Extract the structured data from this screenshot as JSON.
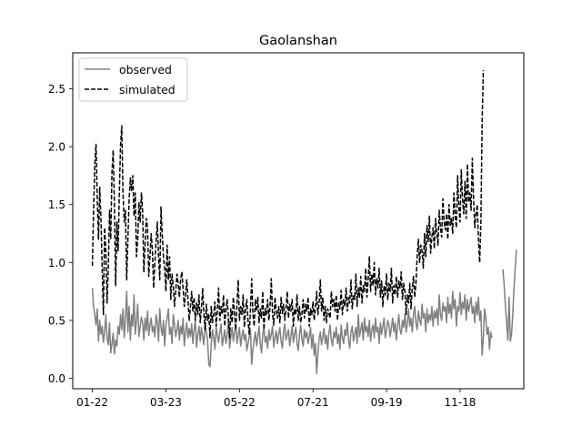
{
  "chart_data": {
    "type": "line",
    "title": "Gaolanshan",
    "xlabel": "",
    "ylabel": "",
    "x_unit": "day",
    "xlim_days": [
      -16,
      352
    ],
    "ylim": [
      -0.09,
      2.81
    ],
    "x_ticks": [
      {
        "label": "01-22",
        "day": 0
      },
      {
        "label": "03-23",
        "day": 60
      },
      {
        "label": "05-22",
        "day": 120
      },
      {
        "label": "07-21",
        "day": 180
      },
      {
        "label": "09-19",
        "day": 240
      },
      {
        "label": "11-18",
        "day": 300
      }
    ],
    "y_ticks": [
      0.0,
      0.5,
      1.0,
      1.5,
      2.0,
      2.5
    ],
    "y_tick_labels": [
      "0.0",
      "0.5",
      "1.0",
      "1.5",
      "2.0",
      "2.5"
    ],
    "legend": {
      "position": "upper-left",
      "observed_label": "observed",
      "simulated_label": "simulated"
    },
    "series": [
      {
        "name": "observed",
        "color": "#808080",
        "style": "solid",
        "segments": [
          {
            "start_day": 0,
            "values": [
              0.78,
              0.62,
              0.55,
              0.46,
              0.6,
              0.32,
              0.5,
              0.38,
              0.45,
              0.31,
              0.4,
              0.55,
              0.35,
              0.29,
              0.48,
              0.22,
              0.3,
              0.39,
              0.21,
              0.33,
              0.28,
              0.45,
              0.38,
              0.55,
              0.42,
              0.6,
              0.35,
              0.52,
              0.75,
              0.4,
              0.62,
              0.33,
              0.55,
              0.45,
              0.72,
              0.38,
              0.5,
              0.64,
              0.36,
              0.45,
              0.53,
              0.48,
              0.33,
              0.52,
              0.41,
              0.58,
              0.37,
              0.46,
              0.52,
              0.4,
              0.45,
              0.36,
              0.55,
              0.48,
              0.32,
              0.6,
              0.44,
              0.37,
              0.5,
              0.28,
              0.46,
              0.52,
              0.6,
              0.38,
              0.44,
              0.3,
              0.55,
              0.47,
              0.36,
              0.42,
              0.5,
              0.33,
              0.45,
              0.38,
              0.52,
              0.28,
              0.4,
              0.48,
              0.35,
              0.43,
              0.36,
              0.47,
              0.3,
              0.42,
              0.5,
              0.27,
              0.38,
              0.45,
              0.32,
              0.44,
              0.36,
              0.29,
              0.48,
              0.4,
              0.33,
              0.12,
              0.1,
              0.3,
              0.42,
              0.35,
              0.25,
              0.45,
              0.37,
              0.31,
              0.4,
              0.47,
              0.28,
              0.35,
              0.42,
              0.3,
              0.38,
              0.5,
              0.26,
              0.36,
              0.44,
              0.32,
              0.4,
              0.47,
              0.3,
              0.38,
              0.44,
              0.28,
              0.36,
              0.42,
              0.33,
              0.38,
              0.24,
              0.3,
              0.36,
              0.42,
              0.12,
              0.25,
              0.33,
              0.4,
              0.28,
              0.36,
              0.45,
              0.3,
              0.22,
              0.38,
              0.44,
              0.31,
              0.36,
              0.26,
              0.42,
              0.33,
              0.38,
              0.45,
              0.27,
              0.35,
              0.41,
              0.3,
              0.38,
              0.44,
              0.32,
              0.26,
              0.4,
              0.47,
              0.33,
              0.38,
              0.42,
              0.28,
              0.36,
              0.45,
              0.31,
              0.38,
              0.44,
              0.3,
              0.24,
              0.38,
              0.46,
              0.33,
              0.28,
              0.42,
              0.35,
              0.4,
              0.3,
              0.36,
              0.44,
              0.26,
              0.38,
              0.2,
              0.3,
              0.04,
              0.22,
              0.34,
              0.4,
              0.29,
              0.36,
              0.43,
              0.3,
              0.37,
              0.25,
              0.39,
              0.46,
              0.33,
              0.28,
              0.4,
              0.35,
              0.44,
              0.3,
              0.38,
              0.25,
              0.46,
              0.35,
              0.3,
              0.42,
              0.37,
              0.48,
              0.33,
              0.26,
              0.4,
              0.45,
              0.32,
              0.38,
              0.44,
              0.3,
              0.55,
              0.36,
              0.42,
              0.48,
              0.33,
              0.52,
              0.4,
              0.45,
              0.36,
              0.5,
              0.32,
              0.42,
              0.46,
              0.35,
              0.52,
              0.4,
              0.44,
              0.3,
              0.48,
              0.38,
              0.45,
              0.52,
              0.35,
              0.42,
              0.5,
              0.46,
              0.36,
              0.44,
              0.52,
              0.4,
              0.48,
              0.33,
              0.45,
              0.55,
              0.42,
              0.38,
              0.5,
              0.44,
              0.56,
              0.4,
              0.48,
              0.6,
              0.45,
              0.52,
              0.4,
              0.55,
              0.62,
              0.48,
              0.42,
              0.58,
              0.5,
              0.46,
              0.64,
              0.52,
              0.56,
              0.4,
              0.6,
              0.48,
              0.55,
              0.5,
              0.62,
              0.45,
              0.58,
              0.52,
              0.6,
              0.46,
              0.72,
              0.55,
              0.5,
              0.65,
              0.58,
              0.62,
              0.48,
              0.7,
              0.56,
              0.64,
              0.52,
              0.75,
              0.6,
              0.68,
              0.45,
              0.62,
              0.58,
              0.74,
              0.55,
              0.66,
              0.6,
              0.72,
              0.5,
              0.68,
              0.58,
              0.64,
              0.7,
              0.56,
              0.62,
              0.48,
              0.66,
              0.55,
              0.7,
              0.5,
              0.58,
              0.2,
              0.35,
              0.6,
              0.52,
              0.38,
              0.44,
              0.25,
              0.4,
              0.35
            ]
          },
          {
            "start_day": 335,
            "values": [
              0.94,
              0.8,
              0.62,
              0.48,
              0.33,
              0.7,
              0.32,
              0.38,
              0.55,
              0.78,
              0.95,
              1.11
            ]
          }
        ]
      },
      {
        "name": "simulated",
        "color": "#000000",
        "style": "dashed",
        "segments": [
          {
            "start_day": 0,
            "values": [
              0.97,
              1.45,
              1.85,
              2.02,
              1.55,
              1.2,
              1.65,
              1.38,
              0.95,
              0.55,
              1.3,
              1.1,
              0.65,
              0.95,
              1.45,
              1.2,
              1.78,
              1.97,
              1.5,
              0.8,
              1.35,
              1.1,
              1.6,
              2.02,
              2.18,
              1.6,
              1.35,
              1.45,
              0.85,
              1.2,
              1.55,
              1.73,
              1.62,
              1.75,
              1.4,
              1.6,
              1.05,
              1.2,
              1.52,
              1.35,
              1.6,
              1.45,
              0.92,
              1.15,
              1.38,
              1.3,
              0.88,
              1.05,
              1.25,
              1.1,
              0.78,
              1.0,
              1.18,
              1.35,
              1.05,
              0.85,
              1.48,
              1.25,
              1.05,
              0.95,
              0.75,
              1.15,
              0.85,
              1.05,
              0.68,
              0.9,
              0.8,
              0.62,
              0.75,
              0.9,
              0.82,
              0.7,
              0.85,
              0.92,
              0.78,
              0.62,
              0.72,
              0.85,
              0.68,
              0.5,
              0.62,
              0.75,
              0.58,
              0.7,
              0.5,
              0.65,
              0.55,
              0.72,
              0.48,
              0.6,
              0.78,
              0.55,
              0.42,
              0.64,
              0.5,
              0.55,
              0.35,
              0.62,
              0.48,
              0.56,
              0.66,
              0.45,
              0.58,
              0.78,
              0.5,
              0.62,
              0.55,
              0.72,
              0.45,
              0.6,
              0.68,
              0.52,
              0.35,
              0.6,
              0.48,
              0.7,
              0.56,
              0.42,
              0.64,
              0.85,
              0.5,
              0.62,
              0.55,
              0.72,
              0.44,
              0.6,
              0.68,
              0.5,
              0.38,
              0.6,
              0.86,
              0.55,
              0.45,
              0.68,
              0.58,
              0.7,
              0.48,
              0.6,
              0.52,
              0.75,
              0.42,
              0.6,
              0.55,
              0.68,
              0.5,
              0.62,
              0.86,
              0.55,
              0.46,
              0.7,
              0.58,
              0.52,
              0.62,
              0.48,
              0.7,
              0.56,
              0.64,
              0.5,
              0.6,
              0.75,
              0.52,
              0.64,
              0.58,
              0.68,
              0.45,
              0.6,
              0.55,
              0.72,
              0.5,
              0.62,
              0.48,
              0.56,
              0.68,
              0.52,
              0.64,
              0.58,
              0.7,
              0.45,
              0.6,
              0.55,
              0.66,
              0.5,
              0.62,
              0.75,
              0.55,
              0.64,
              0.85,
              0.58,
              0.7,
              0.5,
              0.62,
              0.48,
              0.6,
              0.56,
              0.52,
              0.75,
              0.62,
              0.68,
              0.58,
              0.72,
              0.5,
              0.65,
              0.6,
              0.76,
              0.55,
              0.68,
              0.62,
              0.78,
              0.58,
              0.7,
              0.65,
              0.85,
              0.6,
              0.72,
              0.68,
              0.9,
              0.62,
              0.78,
              0.7,
              0.88,
              0.65,
              0.8,
              0.75,
              0.95,
              0.7,
              0.85,
              1.05,
              0.75,
              0.9,
              0.8,
              1.0,
              0.72,
              0.86,
              0.78,
              0.95,
              0.7,
              0.84,
              0.62,
              0.8,
              0.72,
              0.9,
              0.68,
              0.82,
              0.75,
              0.95,
              0.65,
              0.8,
              0.72,
              0.88,
              0.7,
              0.84,
              0.78,
              0.92,
              0.68,
              0.82,
              0.75,
              0.55,
              0.72,
              0.65,
              0.82,
              0.6,
              0.78,
              0.88,
              0.7,
              0.82,
              1.05,
              1.2,
              1.0,
              1.15,
              1.1,
              0.95,
              1.25,
              1.05,
              1.32,
              1.18,
              1.4,
              1.08,
              1.22,
              1.3,
              1.12,
              1.38,
              1.25,
              1.15,
              1.45,
              1.3,
              1.22,
              1.55,
              1.35,
              1.28,
              1.42,
              1.2,
              1.5,
              1.32,
              1.38,
              1.25,
              1.6,
              1.4,
              1.3,
              1.75,
              1.48,
              1.35,
              1.8,
              1.55,
              1.42,
              1.7,
              1.38,
              1.85,
              1.52,
              1.6,
              1.45,
              1.9,
              1.55,
              1.3,
              1.42,
              1.5,
              1.2,
              1.0,
              1.35,
              2.2,
              2.66
            ]
          }
        ]
      }
    ]
  }
}
